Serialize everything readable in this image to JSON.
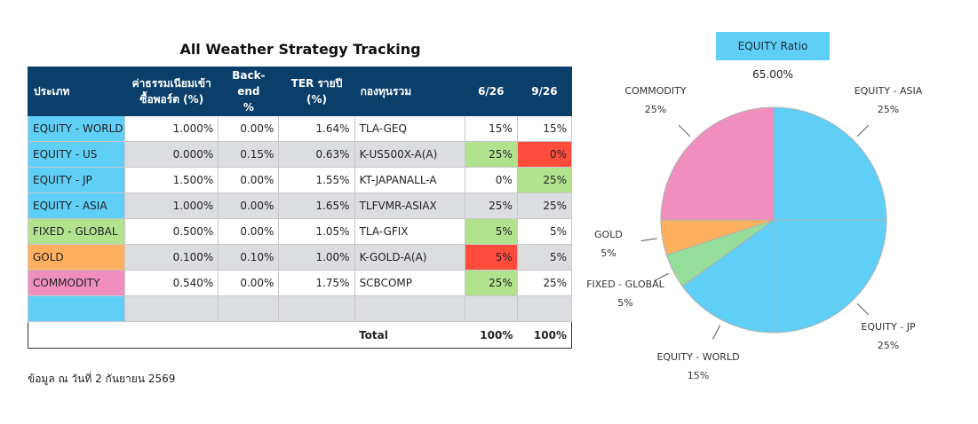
{
  "table": {
    "title": "All Weather Strategy Tracking",
    "headers": {
      "category": "ประเภท",
      "fee_line1": "ค่าธรรมเนียมเข้า",
      "fee_line2": "ซื้อพอร์ต (%)",
      "backend_line1": "Back-end",
      "backend_line2": "%",
      "ter_line1": "TER รายปี",
      "ter_line2": "(%)",
      "fund": "กองทุนรวม",
      "col_626": "6/26",
      "col_926": "9/26"
    },
    "rows": [
      {
        "category": "EQUITY - WORLD",
        "fee": "1.000%",
        "backend": "0.00%",
        "ter": "1.64%",
        "fund": "TLA-GEQ",
        "v626": "15%",
        "v926": "15%",
        "cat_color": "#5fcff8",
        "c626": "",
        "c926": ""
      },
      {
        "category": "EQUITY - US",
        "fee": "0.000%",
        "backend": "0.15%",
        "ter": "0.63%",
        "fund": "K-US500X-A(A)",
        "v626": "25%",
        "v926": "0%",
        "cat_color": "#5fcff8",
        "c626": "#b3e28e",
        "c926": "#ff4d3d"
      },
      {
        "category": "EQUITY - JP",
        "fee": "1.500%",
        "backend": "0.00%",
        "ter": "1.55%",
        "fund": "KT-JAPANALL-A",
        "v626": "0%",
        "v926": "25%",
        "cat_color": "#5fcff8",
        "c626": "",
        "c926": "#b3e28e"
      },
      {
        "category": "EQUITY - ASIA",
        "fee": "1.000%",
        "backend": "0.00%",
        "ter": "1.65%",
        "fund": "TLFVMR-ASIAX",
        "v626": "25%",
        "v926": "25%",
        "cat_color": "#5fcff8",
        "c626": "",
        "c926": ""
      },
      {
        "category": "FIXED - GLOBAL",
        "fee": "0.500%",
        "backend": "0.00%",
        "ter": "1.05%",
        "fund": "TLA-GFIX",
        "v626": "5%",
        "v926": "5%",
        "cat_color": "#b3e28e",
        "c626": "#b3e28e",
        "c926": ""
      },
      {
        "category": "GOLD",
        "fee": "0.100%",
        "backend": "0.10%",
        "ter": "1.00%",
        "fund": "K-GOLD-A(A)",
        "v626": "5%",
        "v926": "5%",
        "cat_color": "#ffb05e",
        "c626": "#ff4d3d",
        "c926": ""
      },
      {
        "category": "COMMODITY",
        "fee": "0.540%",
        "backend": "0.00%",
        "ter": "1.75%",
        "fund": "SCBCOMP",
        "v626": "25%",
        "v926": "25%",
        "cat_color": "#f08fbd",
        "c626": "#b3e28e",
        "c926": ""
      },
      {
        "category": "",
        "fee": "",
        "backend": "",
        "ter": "",
        "fund": "",
        "v626": "",
        "v926": "",
        "cat_color": "#5fcff8",
        "c626": "",
        "c926": ""
      }
    ],
    "total": {
      "label": "Total",
      "v626": "100%",
      "v926": "100%"
    }
  },
  "note": "ข้อมูล ณ วันที่ 2 กันยายน 2569",
  "equity_ratio": {
    "label": "EQUITY Ratio",
    "value": "65.00%"
  },
  "chart_data": {
    "type": "pie",
    "slices": [
      {
        "name": "EQUITY - ASIA",
        "value": 25,
        "label": "25%",
        "color": "#5fcff8"
      },
      {
        "name": "EQUITY - JP",
        "value": 25,
        "label": "25%",
        "color": "#5fcff8"
      },
      {
        "name": "EQUITY - WORLD",
        "value": 15,
        "label": "15%",
        "color": "#5fcff8"
      },
      {
        "name": "FIXED - GLOBAL",
        "value": 5,
        "label": "5%",
        "color": "#95dd9a"
      },
      {
        "name": "GOLD",
        "value": 5,
        "label": "5%",
        "color": "#ffb05e"
      },
      {
        "name": "COMMODITY",
        "value": 25,
        "label": "25%",
        "color": "#f08fbd"
      }
    ],
    "start_angle_deg": 0,
    "direction": "clockwise"
  }
}
